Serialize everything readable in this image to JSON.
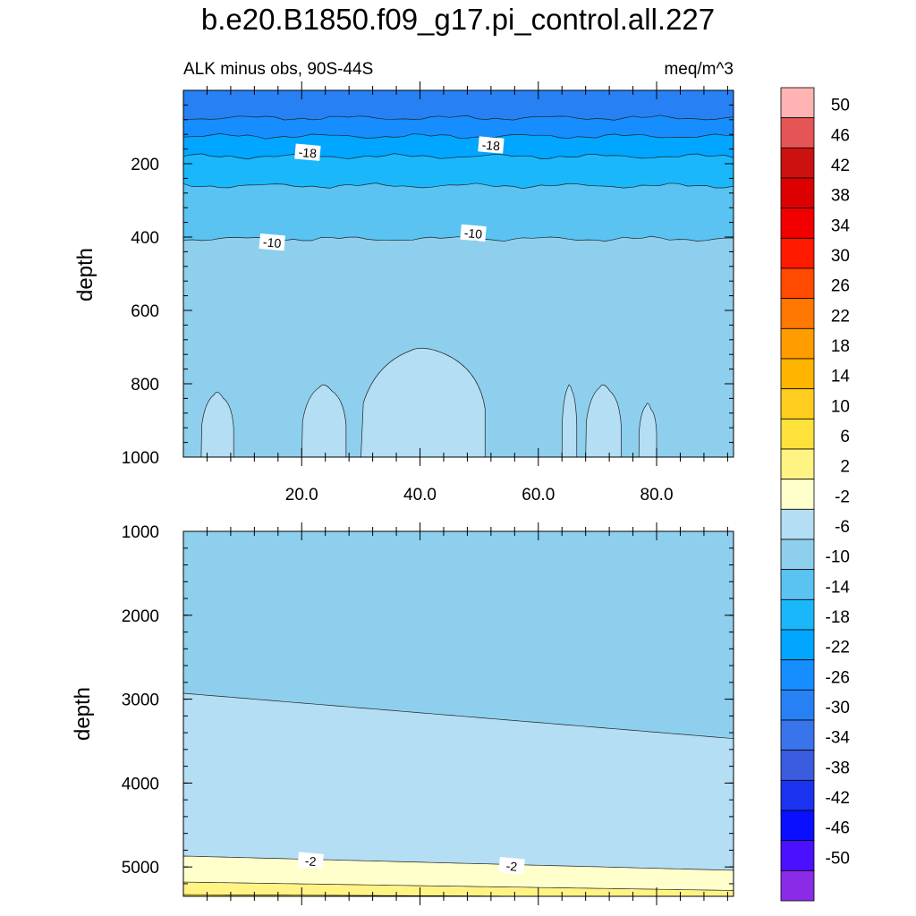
{
  "figure": {
    "title": "b.e20.B1850.f09_g17.pi_control.all.227",
    "left_string": "ALK minus obs, 90S-44S",
    "right_string": "meq/m^3"
  },
  "chart_data": [
    {
      "type": "contour",
      "panel": "upper",
      "ylabel": "depth",
      "xlim": [
        0,
        93
      ],
      "ylim": [
        1000,
        0
      ],
      "x_ticks": [
        20,
        40,
        60,
        80
      ],
      "x_tick_labels": [
        "20.0",
        "40.0",
        "60.0",
        "80.0"
      ],
      "y_ticks": [
        200,
        400,
        600,
        800,
        1000
      ],
      "y_tick_labels": [
        "200",
        "400",
        "600",
        "800",
        "1000"
      ],
      "background_level": "-10 to -6",
      "bands": [
        {
          "level": "-30 to -26",
          "boundary_depth": 75
        },
        {
          "level": "-26 to -22",
          "boundary_depth": 125
        },
        {
          "level": "-22 to -18",
          "boundary_depth": 180
        },
        {
          "level": "-18 to -14",
          "boundary_depth": 260
        },
        {
          "level": "-14 to -10",
          "boundary_depth": 405
        }
      ],
      "contour_labels": [
        {
          "text": "-18",
          "x": 21,
          "depth": 170
        },
        {
          "text": "-18",
          "x": 52,
          "depth": 150
        },
        {
          "text": "-10",
          "x": 15,
          "depth": 415
        },
        {
          "text": "-10",
          "x": 49,
          "depth": 390
        }
      ],
      "patches": [
        {
          "level": "-6 to -2",
          "x_range": [
            3,
            8.5
          ],
          "top_depth": 820
        },
        {
          "level": "-6 to -2",
          "x_range": [
            20,
            27.5
          ],
          "top_depth": 800
        },
        {
          "level": "-6 to -2",
          "x_range": [
            30,
            51
          ],
          "top_depth": 700
        },
        {
          "level": "-6 to -2",
          "x_range": [
            64,
            66.5
          ],
          "top_depth": 800
        },
        {
          "level": "-6 to -2",
          "x_range": [
            68,
            74
          ],
          "top_depth": 800
        },
        {
          "level": "-6 to -2",
          "x_range": [
            77,
            80
          ],
          "top_depth": 850
        }
      ]
    },
    {
      "type": "contour",
      "panel": "lower",
      "ylabel": "depth",
      "xlim": [
        0,
        93
      ],
      "ylim": [
        5350,
        1000
      ],
      "y_ticks": [
        1000,
        2000,
        3000,
        4000,
        5000
      ],
      "y_tick_labels": [
        "1000",
        "2000",
        "3000",
        "4000",
        "5000"
      ],
      "background_level": "-10 to -6",
      "bands": [
        {
          "level": "-6 to -2",
          "boundary_depth_left": 2930,
          "boundary_depth_right": 3470
        },
        {
          "level": "-2 to 2",
          "boundary_depth_left": 4870,
          "boundary_depth_right": 5040
        },
        {
          "level": "2 to 6",
          "boundary_depth_left": 5180,
          "boundary_depth_right": 5280
        },
        {
          "level": "6 to 10",
          "boundary_depth_left": 5330,
          "boundary_depth_right": 5360
        }
      ],
      "contour_labels": [
        {
          "text": "-2",
          "x": 21.5,
          "depth": 4930
        },
        {
          "text": "-2",
          "x": 55.5,
          "depth": 4990
        }
      ]
    }
  ],
  "colorbar": {
    "labels": [
      "50",
      "46",
      "42",
      "38",
      "34",
      "30",
      "26",
      "22",
      "18",
      "14",
      "10",
      "6",
      "2",
      "-2",
      "-6",
      "-10",
      "-14",
      "-18",
      "-22",
      "-26",
      "-30",
      "-34",
      "-38",
      "-42",
      "-46",
      "-50"
    ],
    "colors": [
      "#ffb3b3",
      "#e65555",
      "#cc1111",
      "#dd0000",
      "#f20000",
      "#ff1a00",
      "#ff4a00",
      "#ff7800",
      "#ff9c00",
      "#ffb400",
      "#ffcd1e",
      "#ffe13c",
      "#fff384",
      "#ffffcc",
      "#b3def4",
      "#8fcfee",
      "#5ac3f2",
      "#1ab8fb",
      "#00a6ff",
      "#168eff",
      "#2781f5",
      "#3a74ea",
      "#3a5ddf",
      "#1a33f0",
      "#0a10ff",
      "#4a10ff",
      "#8a2be8"
    ]
  }
}
